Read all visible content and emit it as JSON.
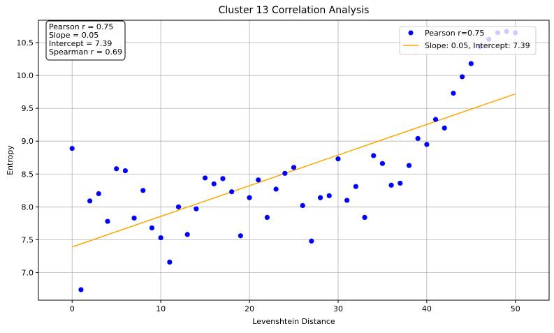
{
  "chart_data": {
    "type": "scatter",
    "title": "Cluster 13 Correlation Analysis",
    "xlabel": "Levenshtein Distance",
    "ylabel": "Entropy",
    "xlim": [
      -3.8,
      53.8
    ],
    "ylim": [
      6.58,
      10.84
    ],
    "x_ticks": [
      0,
      10,
      20,
      30,
      40,
      50
    ],
    "y_ticks": [
      7.0,
      7.5,
      8.0,
      8.5,
      9.0,
      9.5,
      10.0,
      10.5
    ],
    "x_tick_labels": [
      "0",
      "10",
      "20",
      "30",
      "40",
      "50"
    ],
    "y_tick_labels": [
      "7.0",
      "7.5",
      "8.0",
      "8.5",
      "9.0",
      "9.5",
      "10.0",
      "10.5"
    ],
    "grid": true,
    "legend_position": "upper right",
    "colors": {
      "points": "#0000ff",
      "line": "#ffa500"
    },
    "series": [
      {
        "name": "Pearson r=0.75",
        "type": "scatter",
        "x": [
          0,
          1,
          2,
          3,
          4,
          5,
          6,
          7,
          8,
          9,
          10,
          11,
          12,
          13,
          14,
          15,
          16,
          17,
          18,
          19,
          20,
          21,
          22,
          23,
          24,
          25,
          26,
          27,
          28,
          29,
          30,
          31,
          32,
          33,
          34,
          35,
          36,
          37,
          38,
          39,
          40,
          41,
          42,
          43,
          44,
          45,
          46,
          47,
          48,
          49,
          50
        ],
        "y": [
          8.89,
          6.74,
          8.09,
          8.2,
          7.78,
          8.58,
          8.55,
          7.83,
          8.25,
          7.68,
          7.53,
          7.16,
          8.0,
          7.58,
          7.97,
          8.44,
          8.35,
          8.43,
          8.23,
          7.56,
          8.14,
          8.41,
          7.84,
          8.27,
          8.51,
          8.6,
          8.02,
          7.48,
          8.14,
          8.17,
          8.73,
          8.1,
          8.31,
          7.84,
          8.78,
          8.66,
          8.33,
          8.36,
          8.63,
          9.04,
          8.95,
          9.33,
          9.2,
          9.73,
          9.98,
          10.18,
          10.44,
          10.55,
          10.65,
          10.67,
          10.65
        ]
      },
      {
        "name": "Slope: 0.05, Intercept: 7.39",
        "type": "line",
        "x": [
          0,
          50
        ],
        "y": [
          7.39,
          9.72
        ]
      }
    ],
    "stats_box": [
      "Pearson r = 0.75",
      "Slope = 0.05",
      "Intercept = 7.39",
      "Spearman r = 0.69"
    ]
  }
}
